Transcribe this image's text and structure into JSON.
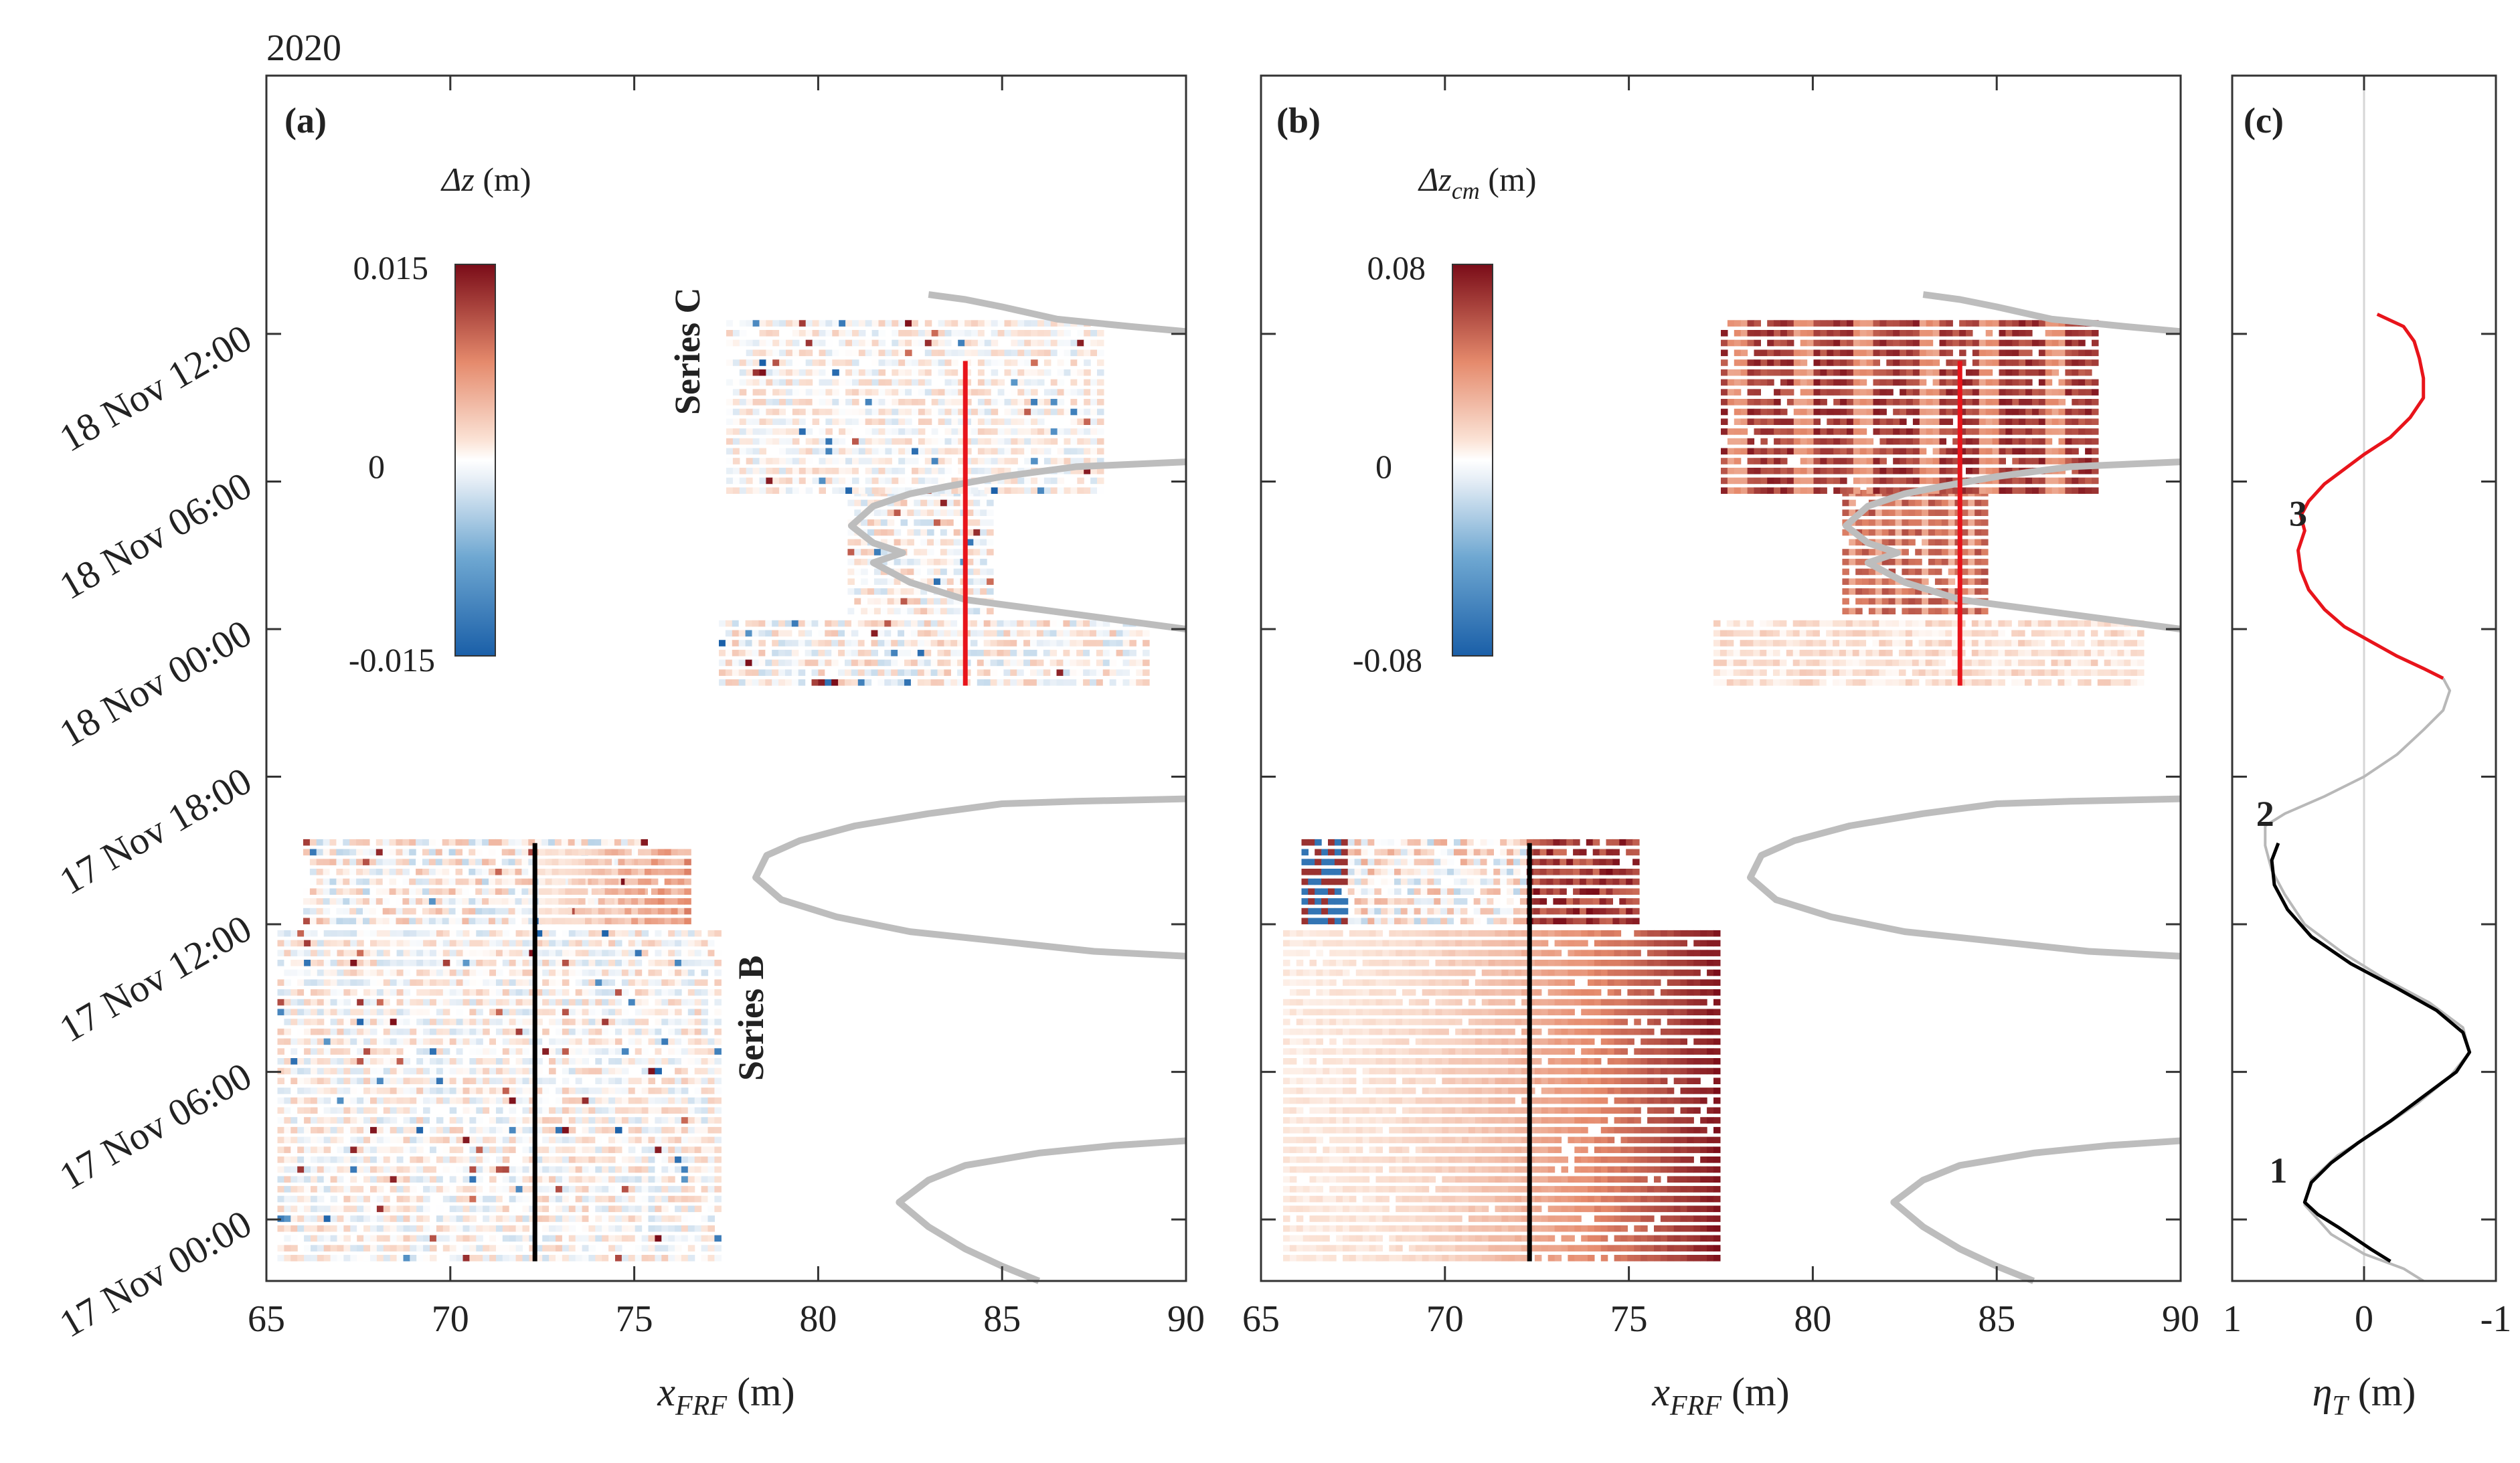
{
  "figure": {
    "year_label": "2020",
    "panels": [
      "(a)",
      "(b)",
      "(c)"
    ]
  },
  "chart_data": [
    {
      "panel": "(a)",
      "type": "heatmap",
      "variable": "Δz (m)",
      "colorbar": {
        "label_main": "Δz",
        "label_unit": "(m)",
        "ticks": [
          "0.015",
          "0",
          "-0.015"
        ],
        "range": [
          -0.015,
          0.015
        ],
        "colormap": "red-white-blue"
      },
      "xlabel_main": "x",
      "xlabel_sub": "FRF",
      "xlabel_unit": "(m)",
      "xlim": [
        65,
        90
      ],
      "xticks": [
        "65",
        "70",
        "75",
        "80",
        "85",
        "90"
      ],
      "ylim_hours": [
        -2.5,
        46.5
      ],
      "yticks": [
        {
          "hour": 0,
          "label": "17 Nov 00:00"
        },
        {
          "hour": 6,
          "label": "17 Nov 06:00"
        },
        {
          "hour": 12,
          "label": "17 Nov 12:00"
        },
        {
          "hour": 18,
          "label": "17 Nov 18:00"
        },
        {
          "hour": 24,
          "label": "18 Nov 00:00"
        },
        {
          "hour": 30,
          "label": "18 Nov 06:00"
        },
        {
          "hour": 36,
          "label": "18 Nov 12:00"
        }
      ],
      "series_labels": [
        {
          "text": "Series B",
          "color": "#000000",
          "x": 77.0,
          "hour": 5.0
        },
        {
          "text": "Series C",
          "color": "#e8141b",
          "x": 75.7,
          "hour": 29.0
        }
      ],
      "series": [
        {
          "name": "Series B",
          "x": 72.3,
          "hours": [
            -1.7,
            15.3
          ],
          "color": "#000000"
        },
        {
          "name": "Series C",
          "x": 84.0,
          "hours": [
            21.7,
            34.9
          ],
          "color": "#e8141b"
        }
      ],
      "shoreline": [
        [
          [
            86.0,
            -2.5
          ],
          [
            85.0,
            -1.9
          ],
          [
            84.0,
            -1.2
          ],
          [
            83.0,
            -0.3
          ],
          [
            82.2,
            0.7
          ],
          [
            83.0,
            1.6
          ],
          [
            84.0,
            2.2
          ],
          [
            86.0,
            2.7
          ],
          [
            88.0,
            3.0
          ],
          [
            90.0,
            3.2
          ]
        ],
        [
          [
            90.0,
            10.7
          ],
          [
            87.5,
            10.9
          ],
          [
            85.0,
            11.3
          ],
          [
            82.5,
            11.7
          ],
          [
            80.5,
            12.3
          ],
          [
            79.0,
            13.0
          ],
          [
            78.3,
            13.9
          ],
          [
            78.6,
            14.8
          ],
          [
            79.5,
            15.4
          ],
          [
            81.0,
            16.0
          ],
          [
            83.0,
            16.5
          ],
          [
            85.0,
            16.9
          ],
          [
            87.0,
            17.0
          ],
          [
            90.0,
            17.1
          ]
        ],
        [
          [
            90.0,
            24.0
          ],
          [
            88.0,
            24.4
          ],
          [
            86.0,
            24.8
          ],
          [
            84.0,
            25.2
          ],
          [
            82.5,
            25.9
          ],
          [
            81.5,
            26.7
          ],
          [
            82.3,
            27.1
          ],
          [
            81.5,
            27.5
          ],
          [
            80.9,
            28.2
          ],
          [
            81.5,
            29.0
          ],
          [
            82.5,
            29.5
          ],
          [
            83.5,
            29.8
          ],
          [
            85.0,
            30.2
          ],
          [
            87.0,
            30.6
          ],
          [
            90.0,
            30.8
          ]
        ],
        [
          [
            90.0,
            36.1
          ],
          [
            88.5,
            36.3
          ],
          [
            86.5,
            36.6
          ],
          [
            85.0,
            37.1
          ],
          [
            84.0,
            37.4
          ],
          [
            83.0,
            37.6
          ]
        ]
      ],
      "blocks": [
        {
          "x0": 65.3,
          "x1": 77.3,
          "h0": -1.7,
          "h1": 11.6,
          "mode": "noisy",
          "amp": 0.4
        },
        {
          "x0": 66.0,
          "x1": 75.2,
          "h0": 12.0,
          "h1": 15.3,
          "mode": "noisy",
          "amp": 0.55
        },
        {
          "x0": 72.4,
          "x1": 76.4,
          "h0": 12.0,
          "h1": 15.1,
          "mode": "warm",
          "amp": 0.6
        },
        {
          "x0": 77.3,
          "x1": 89.0,
          "h0": 21.7,
          "h1": 24.4,
          "mode": "noisy",
          "amp": 0.45
        },
        {
          "x0": 80.8,
          "x1": 84.7,
          "h0": 24.6,
          "h1": 29.5,
          "mode": "noisy",
          "amp": 0.45
        },
        {
          "x0": 77.5,
          "x1": 87.6,
          "h0": 29.5,
          "h1": 36.3,
          "mode": "noisy",
          "amp": 0.35
        }
      ]
    },
    {
      "panel": "(b)",
      "type": "heatmap",
      "variable": "Δz_cm (m)",
      "colorbar": {
        "label_main": "Δz",
        "label_sub": "cm",
        "label_unit": "(m)",
        "ticks": [
          "0.08",
          "0",
          "-0.08"
        ],
        "range": [
          -0.08,
          0.08
        ],
        "colormap": "red-white-blue"
      },
      "xlabel_main": "x",
      "xlabel_sub": "FRF",
      "xlabel_unit": "(m)",
      "xlim": [
        65,
        90
      ],
      "xticks": [
        "65",
        "70",
        "75",
        "80",
        "85",
        "90"
      ],
      "ylim_hours": [
        -2.5,
        46.5
      ],
      "series": [
        {
          "name": "Series B",
          "x": 72.3,
          "hours": [
            -1.7,
            15.3
          ],
          "color": "#000000"
        },
        {
          "name": "Series C",
          "x": 84.0,
          "hours": [
            21.7,
            34.9
          ],
          "color": "#e8141b"
        }
      ],
      "blocks": [
        {
          "x0": 65.6,
          "x1": 77.4,
          "h0": -1.7,
          "h1": 11.6,
          "mode": "gradient",
          "amp": 0.9
        },
        {
          "x0": 66.1,
          "x1": 75.2,
          "h0": 12.0,
          "h1": 15.3,
          "mode": "mixed",
          "amp": 0.9
        },
        {
          "x0": 77.3,
          "x1": 89.0,
          "h0": 21.7,
          "h1": 24.4,
          "mode": "light",
          "amp": 0.2
        },
        {
          "x0": 80.8,
          "x1": 84.7,
          "h0": 24.6,
          "h1": 29.5,
          "mode": "strong",
          "amp": 0.75
        },
        {
          "x0": 77.5,
          "x1": 87.6,
          "h0": 29.5,
          "h1": 36.3,
          "mode": "strong",
          "amp": 0.95
        }
      ]
    },
    {
      "panel": "(c)",
      "type": "line",
      "xlabel_main": "η",
      "xlabel_sub": "T",
      "xlabel_unit": "(m)",
      "xlim": [
        1,
        -1
      ],
      "xticks": [
        "1",
        "0",
        "-1"
      ],
      "ylim_hours": [
        -2.5,
        46.5
      ],
      "event_labels": [
        {
          "text": "1",
          "eta": 0.65,
          "hour": 1.5
        },
        {
          "text": "2",
          "eta": 0.75,
          "hour": 16.0
        },
        {
          "text": "3",
          "eta": 0.5,
          "hour": 28.2
        }
      ],
      "series": [
        {
          "name": "tide (full)",
          "color": "#b8b8b8",
          "points": [
            [
              -0.45,
              -2.5
            ],
            [
              -0.3,
              -2.0
            ],
            [
              0.0,
              -1.4
            ],
            [
              0.25,
              -0.6
            ],
            [
              0.35,
              0.0
            ],
            [
              0.45,
              0.6
            ],
            [
              0.4,
              1.6
            ],
            [
              0.2,
              2.6
            ],
            [
              -0.1,
              3.6
            ],
            [
              -0.4,
              4.7
            ],
            [
              -0.65,
              5.8
            ],
            [
              -0.8,
              6.8
            ],
            [
              -0.75,
              7.8
            ],
            [
              -0.5,
              8.8
            ],
            [
              -0.15,
              9.8
            ],
            [
              0.15,
              10.8
            ],
            [
              0.45,
              12.0
            ],
            [
              0.6,
              13.2
            ],
            [
              0.7,
              14.2
            ],
            [
              0.75,
              15.2
            ],
            [
              0.75,
              16.0
            ]
          ]
        },
        {
          "name": "tide (between series)",
          "color": "#b8b8b8",
          "points": [
            [
              0.75,
              16.0
            ],
            [
              0.6,
              16.5
            ],
            [
              0.3,
              17.2
            ],
            [
              0.0,
              18.0
            ],
            [
              -0.25,
              18.9
            ],
            [
              -0.45,
              19.9
            ],
            [
              -0.6,
              20.7
            ],
            [
              -0.65,
              21.5
            ],
            [
              -0.6,
              22.0
            ]
          ]
        },
        {
          "name": "Series B tide",
          "color": "#000000",
          "points": [
            [
              -0.2,
              -1.7
            ],
            [
              -0.05,
              -1.2
            ],
            [
              0.2,
              -0.3
            ],
            [
              0.35,
              0.2
            ],
            [
              0.45,
              0.7
            ],
            [
              0.4,
              1.5
            ],
            [
              0.25,
              2.3
            ],
            [
              0.05,
              3.1
            ],
            [
              -0.2,
              4.0
            ],
            [
              -0.45,
              5.0
            ],
            [
              -0.7,
              6.0
            ],
            [
              -0.8,
              6.8
            ],
            [
              -0.75,
              7.6
            ],
            [
              -0.55,
              8.5
            ],
            [
              -0.25,
              9.4
            ],
            [
              0.1,
              10.4
            ],
            [
              0.4,
              11.5
            ],
            [
              0.58,
              12.6
            ],
            [
              0.68,
              13.6
            ],
            [
              0.7,
              14.6
            ],
            [
              0.65,
              15.3
            ]
          ]
        },
        {
          "name": "Series C tide",
          "color": "#e8141b",
          "points": [
            [
              -0.6,
              22.0
            ],
            [
              -0.45,
              22.4
            ],
            [
              -0.25,
              22.9
            ],
            [
              -0.05,
              23.5
            ],
            [
              0.15,
              24.1
            ],
            [
              0.3,
              24.8
            ],
            [
              0.42,
              25.6
            ],
            [
              0.48,
              26.4
            ],
            [
              0.5,
              27.2
            ],
            [
              0.45,
              28.0
            ],
            [
              0.48,
              28.6
            ],
            [
              0.42,
              29.2
            ],
            [
              0.3,
              29.9
            ],
            [
              0.15,
              30.5
            ],
            [
              0.0,
              31.1
            ],
            [
              -0.2,
              31.8
            ],
            [
              -0.35,
              32.6
            ],
            [
              -0.45,
              33.4
            ],
            [
              -0.45,
              34.2
            ],
            [
              -0.42,
              35.0
            ],
            [
              -0.38,
              35.7
            ],
            [
              -0.3,
              36.3
            ],
            [
              -0.1,
              36.8
            ]
          ]
        }
      ]
    }
  ]
}
